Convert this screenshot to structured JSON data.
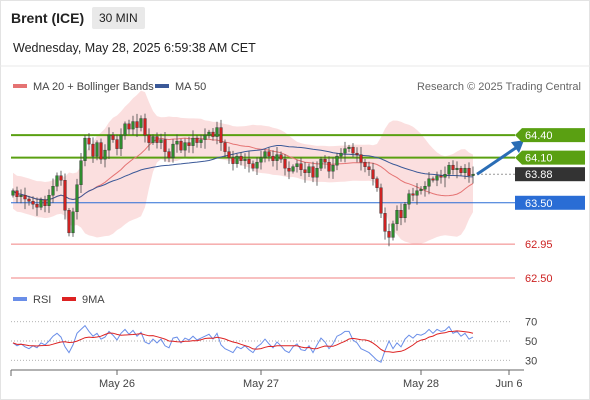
{
  "header": {
    "instrument": "Brent (ICE)",
    "timeframe": "30 MIN",
    "datetime": "Wednesday, May 28, 2025 6:59:38 AM CET"
  },
  "colors": {
    "candle_up": "#2e8b2e",
    "candle_down": "#cc2222",
    "ma20": "#e57373",
    "band_fill": "#f9d4d4",
    "ma50": "#3b5998",
    "resistance": "#5aa012",
    "pivot": "#2a6dd5",
    "support": "#f08080",
    "current": "#333333",
    "arrow": "#2a6db5",
    "rsi": "#6a8ee8",
    "rsi_ma": "#dd2222"
  },
  "chart_data": [
    {
      "type": "candlestick",
      "title": "Brent (ICE)",
      "legend": [
        {
          "name": "MA 20 + Bollinger Bands",
          "color": "#e57373"
        },
        {
          "name": "MA 50",
          "color": "#3b5998"
        }
      ],
      "legend_position": "top-left",
      "copyright": "Research © 2025 Trading Central",
      "ylim": [
        62.38,
        64.88
      ],
      "x_ticks": [
        {
          "label": "May 26",
          "index": 26
        },
        {
          "label": "May 27",
          "index": 62
        },
        {
          "label": "May 28",
          "index": 102
        },
        {
          "label": "Jun 6",
          "index": 124
        }
      ],
      "levels": [
        {
          "value": 64.4,
          "label": "64.40",
          "kind": "resistance"
        },
        {
          "value": 64.1,
          "label": "64.10",
          "kind": "resistance"
        },
        {
          "value": 63.88,
          "label": "63.88",
          "kind": "current"
        },
        {
          "value": 63.5,
          "label": "63.50",
          "kind": "pivot"
        },
        {
          "value": 62.95,
          "label": "62.95",
          "kind": "support"
        },
        {
          "value": 62.5,
          "label": "62.50",
          "kind": "support"
        }
      ],
      "arrow": {
        "from": [
          116,
          63.88
        ],
        "to": [
          127,
          64.28
        ]
      },
      "closes": [
        63.66,
        63.58,
        63.6,
        63.55,
        63.52,
        63.48,
        63.44,
        63.54,
        63.46,
        63.6,
        63.72,
        63.86,
        63.8,
        63.4,
        63.1,
        63.38,
        63.74,
        64.06,
        64.36,
        64.28,
        64.12,
        64.3,
        64.08,
        64.2,
        64.4,
        64.34,
        64.22,
        64.4,
        64.55,
        64.48,
        64.58,
        64.5,
        64.62,
        64.4,
        64.3,
        64.38,
        64.3,
        64.34,
        64.18,
        64.1,
        64.28,
        64.32,
        64.2,
        64.3,
        64.26,
        64.36,
        64.3,
        64.34,
        64.4,
        64.44,
        64.38,
        64.5,
        64.3,
        64.18,
        64.1,
        64.02,
        64.12,
        64.06,
        64.08,
        64.02,
        63.96,
        64.04,
        64.1,
        64.18,
        64.12,
        64.06,
        64.14,
        64.08,
        63.96,
        63.92,
        63.98,
        64.02,
        63.94,
        63.9,
        63.98,
        63.84,
        63.96,
        64.08,
        64.04,
        63.92,
        64.0,
        64.12,
        64.16,
        64.22,
        64.24,
        64.16,
        64.14,
        64.04,
        63.98,
        63.94,
        63.82,
        63.7,
        63.36,
        63.12,
        63.04,
        63.22,
        63.4,
        63.3,
        63.48,
        63.62,
        63.6,
        63.66,
        63.68,
        63.72,
        63.82,
        63.8,
        63.86,
        63.84,
        63.88,
        64.0,
        63.94,
        63.96,
        63.9,
        63.96,
        63.86,
        63.88
      ],
      "indicator": {
        "name": "RSI",
        "legend": [
          {
            "name": "RSI",
            "color": "#6a8ee8"
          },
          {
            "name": "9MA",
            "color": "#dd2222"
          }
        ],
        "ylim": [
          22,
          78
        ],
        "ticks": [
          70,
          50,
          30
        ],
        "rsi": [
          48,
          45,
          47,
          44,
          42,
          45,
          43,
          48,
          46,
          50,
          55,
          58,
          54,
          44,
          38,
          46,
          58,
          62,
          66,
          60,
          55,
          58,
          52,
          54,
          60,
          56,
          51,
          58,
          62,
          57,
          61,
          55,
          59,
          49,
          47,
          52,
          48,
          52,
          45,
          43,
          53,
          54,
          48,
          53,
          51,
          55,
          51,
          53,
          55,
          57,
          52,
          58,
          46,
          42,
          40,
          38,
          44,
          42,
          45,
          41,
          38,
          44,
          47,
          52,
          47,
          43,
          49,
          45,
          40,
          38,
          44,
          47,
          41,
          40,
          45,
          38,
          46,
          53,
          49,
          42,
          47,
          55,
          57,
          60,
          60,
          51,
          48,
          42,
          40,
          38,
          34,
          30,
          28,
          40,
          50,
          42,
          48,
          44,
          52,
          56,
          53,
          57,
          56,
          58,
          62,
          58,
          62,
          60,
          61,
          65,
          58,
          60,
          55,
          58,
          52,
          54
        ]
      }
    }
  ]
}
